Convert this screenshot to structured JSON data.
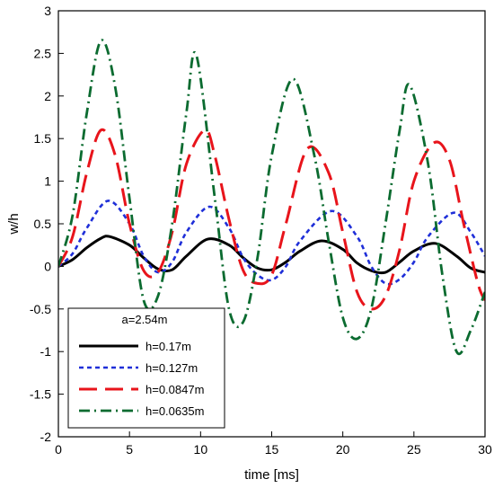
{
  "chart_data": {
    "type": "line",
    "title": "",
    "xlabel": "time [ms]",
    "ylabel": "w/h",
    "xlim": [
      0,
      30
    ],
    "ylim": [
      -2,
      3
    ],
    "xticks": [
      0,
      5,
      10,
      15,
      20,
      25,
      30
    ],
    "yticks": [
      -2,
      -1.5,
      -1,
      -0.5,
      0,
      0.5,
      1,
      1.5,
      2,
      2.5,
      3
    ],
    "xtick_labels": [
      "0",
      "5",
      "10",
      "15",
      "20",
      "25",
      "30"
    ],
    "ytick_labels": [
      "-2",
      "-1.5",
      "-1",
      "-0.5",
      "0",
      "0.5",
      "1",
      "1.5",
      "2",
      "2.5",
      "3"
    ],
    "grid": false,
    "legend": {
      "title": "a=2.54m",
      "placement": "bottom-left"
    },
    "series": [
      {
        "name": "h=0.17m",
        "color": "#000000",
        "dash": "solid",
        "x": [
          0,
          1,
          2,
          3,
          3.6,
          5,
          6,
          7,
          8,
          9,
          10.5,
          12,
          13,
          14,
          15,
          16,
          17,
          18.5,
          20,
          21,
          22,
          23,
          24,
          25,
          26.5,
          28,
          29,
          30
        ],
        "y": [
          0,
          0.08,
          0.22,
          0.33,
          0.35,
          0.25,
          0.1,
          -0.03,
          -0.04,
          0.12,
          0.32,
          0.25,
          0.1,
          -0.02,
          -0.04,
          0.05,
          0.18,
          0.3,
          0.2,
          0.04,
          -0.05,
          -0.07,
          0.05,
          0.18,
          0.27,
          0.12,
          -0.02,
          -0.07
        ]
      },
      {
        "name": "h=0.127m",
        "color": "#1f2fd8",
        "dash": "short",
        "x": [
          0,
          1,
          2,
          3.5,
          5,
          6,
          7,
          8,
          9,
          10.6,
          12,
          13,
          14,
          15,
          16,
          17,
          19.2,
          21,
          22,
          23,
          24,
          25,
          26,
          27.8,
          29,
          30
        ],
        "y": [
          0,
          0.15,
          0.45,
          0.77,
          0.5,
          0.12,
          -0.07,
          0.05,
          0.4,
          0.7,
          0.45,
          0.1,
          -0.1,
          -0.16,
          0.0,
          0.3,
          0.65,
          0.35,
          0.0,
          -0.2,
          -0.15,
          0.05,
          0.35,
          0.63,
          0.4,
          0.12
        ]
      },
      {
        "name": "h=0.0847m",
        "color": "#e8141b",
        "dash": "long",
        "x": [
          0,
          1,
          2,
          3,
          4,
          5,
          6,
          7,
          8,
          9,
          10.3,
          11,
          12,
          13,
          14,
          15,
          16,
          17.5,
          19,
          20,
          21,
          22,
          23,
          24,
          25,
          26.4,
          27.5,
          28.5,
          29.5,
          30
        ],
        "y": [
          0,
          0.35,
          1.1,
          1.6,
          1.3,
          0.5,
          -0.05,
          -0.07,
          0.4,
          1.2,
          1.6,
          1.3,
          0.55,
          -0.05,
          -0.2,
          -0.1,
          0.5,
          1.38,
          1.1,
          0.4,
          -0.3,
          -0.5,
          -0.35,
          0.2,
          1.0,
          1.45,
          1.25,
          0.5,
          -0.2,
          -0.4
        ]
      },
      {
        "name": "h=0.0635m",
        "color": "#0b6b30",
        "dash": "dash-dot",
        "x": [
          0,
          1,
          2,
          3,
          4,
          5,
          6,
          7,
          8,
          9,
          9.7,
          11,
          12,
          13,
          14,
          15,
          16.5,
          18,
          19,
          20,
          21,
          22,
          23,
          24,
          24.7,
          26,
          27,
          28,
          29,
          30
        ],
        "y": [
          0,
          0.6,
          1.8,
          2.65,
          2.1,
          0.8,
          -0.4,
          -0.35,
          0.5,
          1.8,
          2.48,
          0.8,
          -0.5,
          -0.65,
          0.1,
          1.3,
          2.2,
          1.3,
          0.3,
          -0.6,
          -0.85,
          -0.5,
          0.5,
          1.6,
          2.13,
          1.2,
          -0.1,
          -1.0,
          -0.75,
          -0.3
        ]
      }
    ]
  }
}
